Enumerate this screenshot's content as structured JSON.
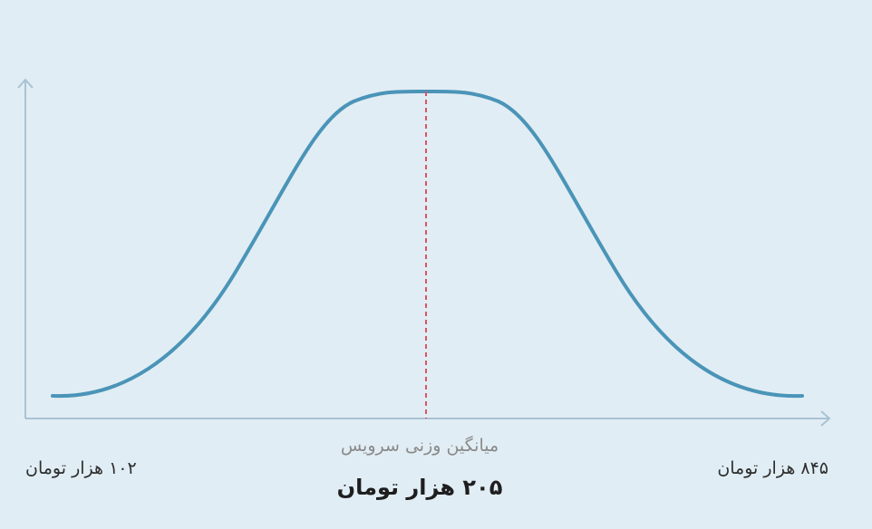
{
  "labels": {
    "min": "۱۰۲ هزار تومان",
    "max": "۸۴۵ هزار تومان",
    "mean_caption": "میانگین وزنی سرویس",
    "mean_value": "۲۰۵ هزار تومان"
  }
}
